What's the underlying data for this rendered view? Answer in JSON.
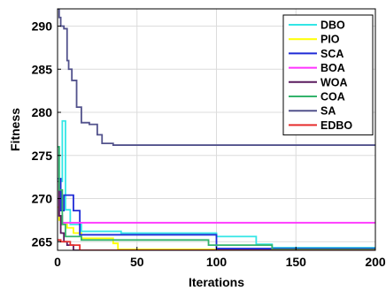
{
  "chart_data": {
    "type": "line",
    "title": "",
    "xlabel": "Iterations",
    "ylabel": "Fitness",
    "xlim": [
      0,
      200
    ],
    "ylim": [
      264,
      292
    ],
    "xticks": [
      0,
      50,
      100,
      150,
      200
    ],
    "yticks": [
      265,
      270,
      275,
      280,
      285,
      290
    ],
    "grid": true,
    "legend_position": "top-right",
    "series": [
      {
        "name": "DBO",
        "color": "#33e6e6",
        "x": [
          0,
          1,
          1,
          3,
          3,
          5,
          5,
          8,
          8,
          15,
          15,
          40,
          40,
          100,
          100,
          125,
          125,
          135,
          135,
          200
        ],
        "y": [
          276,
          276,
          272,
          272,
          279,
          279,
          268.7,
          268.7,
          267,
          267,
          266.2,
          266.2,
          266,
          266,
          265.6,
          265.6,
          264.7,
          264.7,
          264.3,
          264.3
        ]
      },
      {
        "name": "PIO",
        "color": "#ffff00",
        "x": [
          0,
          1,
          1,
          3,
          3,
          6,
          6,
          10,
          10,
          15,
          15,
          35,
          35,
          38,
          38,
          200
        ],
        "y": [
          269,
          269,
          267.5,
          267.5,
          267,
          267,
          266.6,
          266.6,
          266,
          266,
          265.4,
          265.4,
          264.8,
          264.8,
          264.1,
          264.1
        ]
      },
      {
        "name": "SCA",
        "color": "#1f2bd6",
        "x": [
          0,
          2,
          2,
          4,
          4,
          10,
          10,
          14,
          14,
          100,
          100,
          200
        ],
        "y": [
          272.3,
          272.3,
          268.6,
          268.6,
          270.4,
          270.4,
          268.6,
          268.6,
          265.8,
          265.8,
          264.2,
          264.2
        ]
      },
      {
        "name": "BOA",
        "color": "#ff33ff",
        "x": [
          0,
          1,
          1,
          3,
          3,
          200
        ],
        "y": [
          270,
          270,
          268,
          268,
          267.2,
          267.2
        ]
      },
      {
        "name": "WOA",
        "color": "#5a1a5e",
        "x": [
          0,
          1,
          1,
          2,
          2,
          4,
          4,
          6,
          6,
          10,
          10,
          200
        ],
        "y": [
          272,
          272,
          268,
          268,
          266,
          266,
          265,
          265,
          264.6,
          264.6,
          264,
          264
        ]
      },
      {
        "name": "COA",
        "color": "#33b36b",
        "x": [
          0,
          1,
          1,
          3,
          3,
          5,
          5,
          15,
          15,
          95,
          95,
          135,
          135,
          200
        ],
        "y": [
          276,
          276,
          271,
          271,
          267,
          267,
          265.6,
          265.6,
          265.2,
          265.2,
          264.6,
          264.6,
          264.1,
          264.1
        ]
      },
      {
        "name": "SA",
        "color": "#52528c",
        "x": [
          0,
          1,
          1,
          2,
          2,
          4,
          4,
          6,
          6,
          7,
          7,
          9,
          9,
          12,
          12,
          15,
          15,
          20,
          20,
          25,
          25,
          28,
          28,
          35,
          35,
          200
        ],
        "y": [
          292,
          292,
          291,
          291,
          290,
          290,
          289.7,
          289.7,
          286,
          286,
          285,
          285,
          283.7,
          283.7,
          280.6,
          280.6,
          278.8,
          278.8,
          278.6,
          278.6,
          277.4,
          277.4,
          276.4,
          276.4,
          276.2,
          276.2
        ]
      },
      {
        "name": "EDBO",
        "color": "#e62e2e",
        "x": [
          0,
          2,
          2,
          8,
          8,
          14,
          14,
          200
        ],
        "y": [
          265.2,
          265.2,
          265,
          265,
          264.6,
          264.6,
          264,
          264
        ]
      }
    ]
  }
}
